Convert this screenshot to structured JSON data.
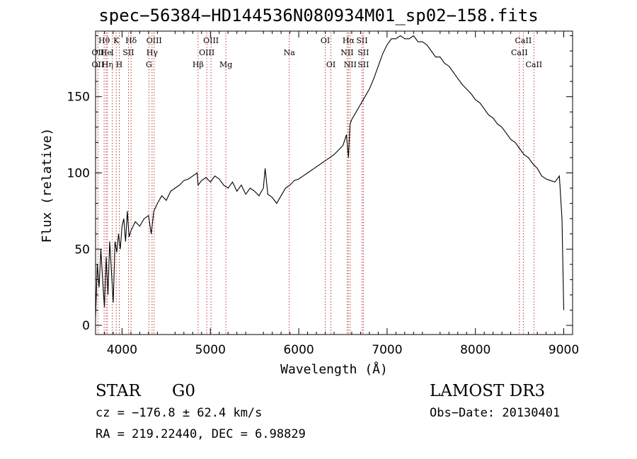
{
  "title": "spec−56384−HD144536N080934M01_sp02−158.fits",
  "footer": {
    "object_class": "STAR",
    "subclass": "G0",
    "survey": "LAMOST DR3",
    "cz": "cz = −176.8 ± 62.4 km/s",
    "obs_date": "Obs−Date: 20130401",
    "coords": "RA = 219.22440, DEC =   6.98829"
  },
  "colors": {
    "line": "#000000",
    "marker": "#b22222",
    "background": "#ffffff"
  },
  "chart_data": {
    "type": "line",
    "title": "spec−56384−HD144536N080934M01_sp02−158.fits",
    "xlabel": "Wavelength (Å)",
    "ylabel": "Flux (relative)",
    "xlim": [
      3700,
      9100
    ],
    "ylim": [
      -6,
      193
    ],
    "xticks": [
      4000,
      5000,
      6000,
      7000,
      8000,
      9000
    ],
    "yticks": [
      0,
      50,
      100,
      150
    ],
    "grid": false,
    "series": [
      {
        "name": "flux",
        "x": [
          3700,
          3720,
          3740,
          3760,
          3780,
          3800,
          3820,
          3840,
          3860,
          3880,
          3900,
          3920,
          3940,
          3960,
          3980,
          4000,
          4020,
          4040,
          4060,
          4080,
          4100,
          4150,
          4200,
          4250,
          4300,
          4330,
          4360,
          4400,
          4450,
          4500,
          4550,
          4600,
          4650,
          4700,
          4750,
          4800,
          4850,
          4861,
          4900,
          4950,
          5000,
          5050,
          5100,
          5150,
          5200,
          5250,
          5300,
          5350,
          5400,
          5450,
          5500,
          5550,
          5600,
          5620,
          5650,
          5700,
          5750,
          5800,
          5850,
          5900,
          5950,
          6000,
          6050,
          6100,
          6150,
          6200,
          6250,
          6300,
          6350,
          6400,
          6450,
          6500,
          6540,
          6563,
          6580,
          6600,
          6650,
          6700,
          6750,
          6800,
          6850,
          6900,
          6950,
          7000,
          7050,
          7100,
          7150,
          7200,
          7250,
          7300,
          7350,
          7400,
          7450,
          7500,
          7550,
          7600,
          7650,
          7700,
          7750,
          7800,
          7850,
          7900,
          7950,
          8000,
          8050,
          8100,
          8150,
          8200,
          8250,
          8300,
          8350,
          8400,
          8450,
          8500,
          8550,
          8600,
          8650,
          8700,
          8750,
          8800,
          8850,
          8900,
          8950,
          8980,
          9000
        ],
        "y": [
          5,
          40,
          25,
          50,
          30,
          12,
          45,
          20,
          55,
          35,
          15,
          55,
          48,
          60,
          50,
          65,
          70,
          55,
          75,
          58,
          62,
          68,
          65,
          70,
          72,
          60,
          75,
          80,
          85,
          82,
          88,
          90,
          92,
          95,
          96,
          98,
          100,
          92,
          95,
          97,
          94,
          98,
          96,
          92,
          90,
          94,
          88,
          92,
          86,
          90,
          88,
          85,
          90,
          103,
          86,
          84,
          80,
          85,
          90,
          92,
          95,
          96,
          98,
          100,
          102,
          104,
          106,
          108,
          110,
          112,
          115,
          118,
          125,
          110,
          132,
          135,
          140,
          145,
          150,
          155,
          162,
          170,
          178,
          184,
          188,
          188,
          190,
          188,
          188,
          190,
          186,
          186,
          184,
          180,
          176,
          176,
          172,
          170,
          166,
          162,
          158,
          155,
          152,
          148,
          146,
          142,
          138,
          136,
          132,
          130,
          126,
          122,
          120,
          116,
          112,
          110,
          106,
          103,
          98,
          96,
          95,
          94,
          98,
          70,
          10
        ]
      }
    ],
    "line_markers": [
      {
        "label": "OII",
        "x": 3727,
        "row": 2
      },
      {
        "label": "OII",
        "x": 3727,
        "row": 3
      },
      {
        "label": "Hθ",
        "x": 3797,
        "row": 1
      },
      {
        "label": "He",
        "x": 3820,
        "row": 2
      },
      {
        "label": "Hη",
        "x": 3835,
        "row": 3
      },
      {
        "label": "K",
        "x": 3934,
        "row": 1
      },
      {
        "label": "I",
        "x": 3890,
        "row": 2
      },
      {
        "label": "SII",
        "x": 4072,
        "row": 2
      },
      {
        "label": "H",
        "x": 3968,
        "row": 3
      },
      {
        "label": "Hδ",
        "x": 4102,
        "row": 1
      },
      {
        "label": "OIII",
        "x": 4363,
        "row": 1
      },
      {
        "label": "Hγ",
        "x": 4340,
        "row": 2
      },
      {
        "label": "G",
        "x": 4304,
        "row": 3
      },
      {
        "label": "OIII",
        "x": 5007,
        "row": 1
      },
      {
        "label": "OIII",
        "x": 4959,
        "row": 2
      },
      {
        "label": "Hβ",
        "x": 4861,
        "row": 3
      },
      {
        "label": "Mg",
        "x": 5175,
        "row": 3
      },
      {
        "label": "Na",
        "x": 5893,
        "row": 2
      },
      {
        "label": "OI",
        "x": 6300,
        "row": 1
      },
      {
        "label": "OI",
        "x": 6364,
        "row": 3
      },
      {
        "label": "Hα",
        "x": 6563,
        "row": 1
      },
      {
        "label": "SII",
        "x": 6716,
        "row": 1
      },
      {
        "label": "NII",
        "x": 6548,
        "row": 2
      },
      {
        "label": "SII",
        "x": 6731,
        "row": 2
      },
      {
        "label": "NII",
        "x": 6583,
        "row": 3
      },
      {
        "label": "SII",
        "x": 6731,
        "row": 3
      },
      {
        "label": "CaII",
        "x": 8542,
        "row": 1
      },
      {
        "label": "CaII",
        "x": 8498,
        "row": 2
      },
      {
        "label": "CaII",
        "x": 8662,
        "row": 3
      }
    ]
  }
}
